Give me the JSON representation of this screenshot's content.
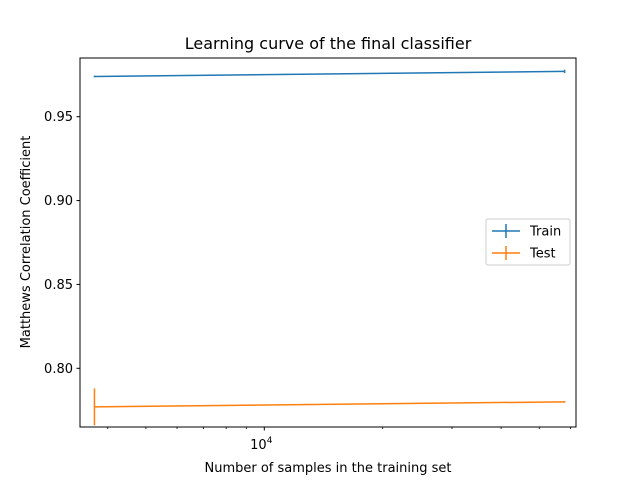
{
  "chart_data": {
    "type": "line",
    "title": "Learning curve of the final classifier",
    "xlabel": "Number of samples in the training set",
    "ylabel": "Matthews Correlation Coefficient",
    "xscale": "log",
    "xlim": [
      3400,
      62000
    ],
    "ylim": [
      0.765,
      0.985
    ],
    "yticks": [
      0.8,
      0.85,
      0.9,
      0.95
    ],
    "ytick_labels": [
      "0.80",
      "0.85",
      "0.90",
      "0.95"
    ],
    "xticks_major": [
      10000
    ],
    "xtick_major_label_base": "10",
    "xtick_major_label_exp": "4",
    "xticks_minor": [
      4000,
      5000,
      6000,
      7000,
      8000,
      9000,
      20000,
      30000,
      40000,
      50000,
      60000
    ],
    "grid": false,
    "legend_position": "center-right",
    "series": [
      {
        "name": "Train",
        "color": "#1f77b4",
        "x": [
          3700,
          58000
        ],
        "y": [
          0.974,
          0.977
        ],
        "yerr": [
          0.0005,
          0.001
        ]
      },
      {
        "name": "Test",
        "color": "#ff7f0e",
        "x": [
          3700,
          58000
        ],
        "y": [
          0.777,
          0.78
        ],
        "yerr": [
          0.011,
          0.0005
        ]
      }
    ]
  }
}
